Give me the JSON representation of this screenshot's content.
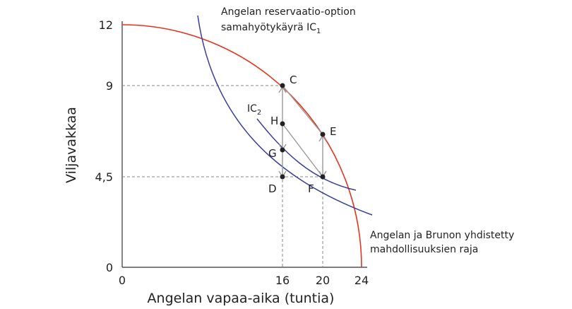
{
  "axes": {
    "xlabel": "Angelan vapaa-aika (tuntia)",
    "ylabel": "Viljavakkaa",
    "xticks": [
      "0",
      "16",
      "20",
      "24"
    ],
    "yticks": [
      "0",
      "4,5",
      "9",
      "12"
    ]
  },
  "annotations": {
    "ic1_line1": "Angelan reservaatio-option",
    "ic1_line2": "samahyötykäyrä IC",
    "ic1_sub": "1",
    "ic2": "IC",
    "ic2_sub": "2",
    "frontier_line1": "Angelan ja Brunon yhdistetty",
    "frontier_line2": "mahdollisuuksien raja"
  },
  "points": {
    "C": "C",
    "E": "E",
    "H": "H",
    "G": "G",
    "D": "D",
    "F": "F"
  },
  "colors": {
    "frontier": "#e8321e",
    "indifference": "#3a3f9e",
    "guides": "#888888",
    "arrows": "#999999"
  }
}
